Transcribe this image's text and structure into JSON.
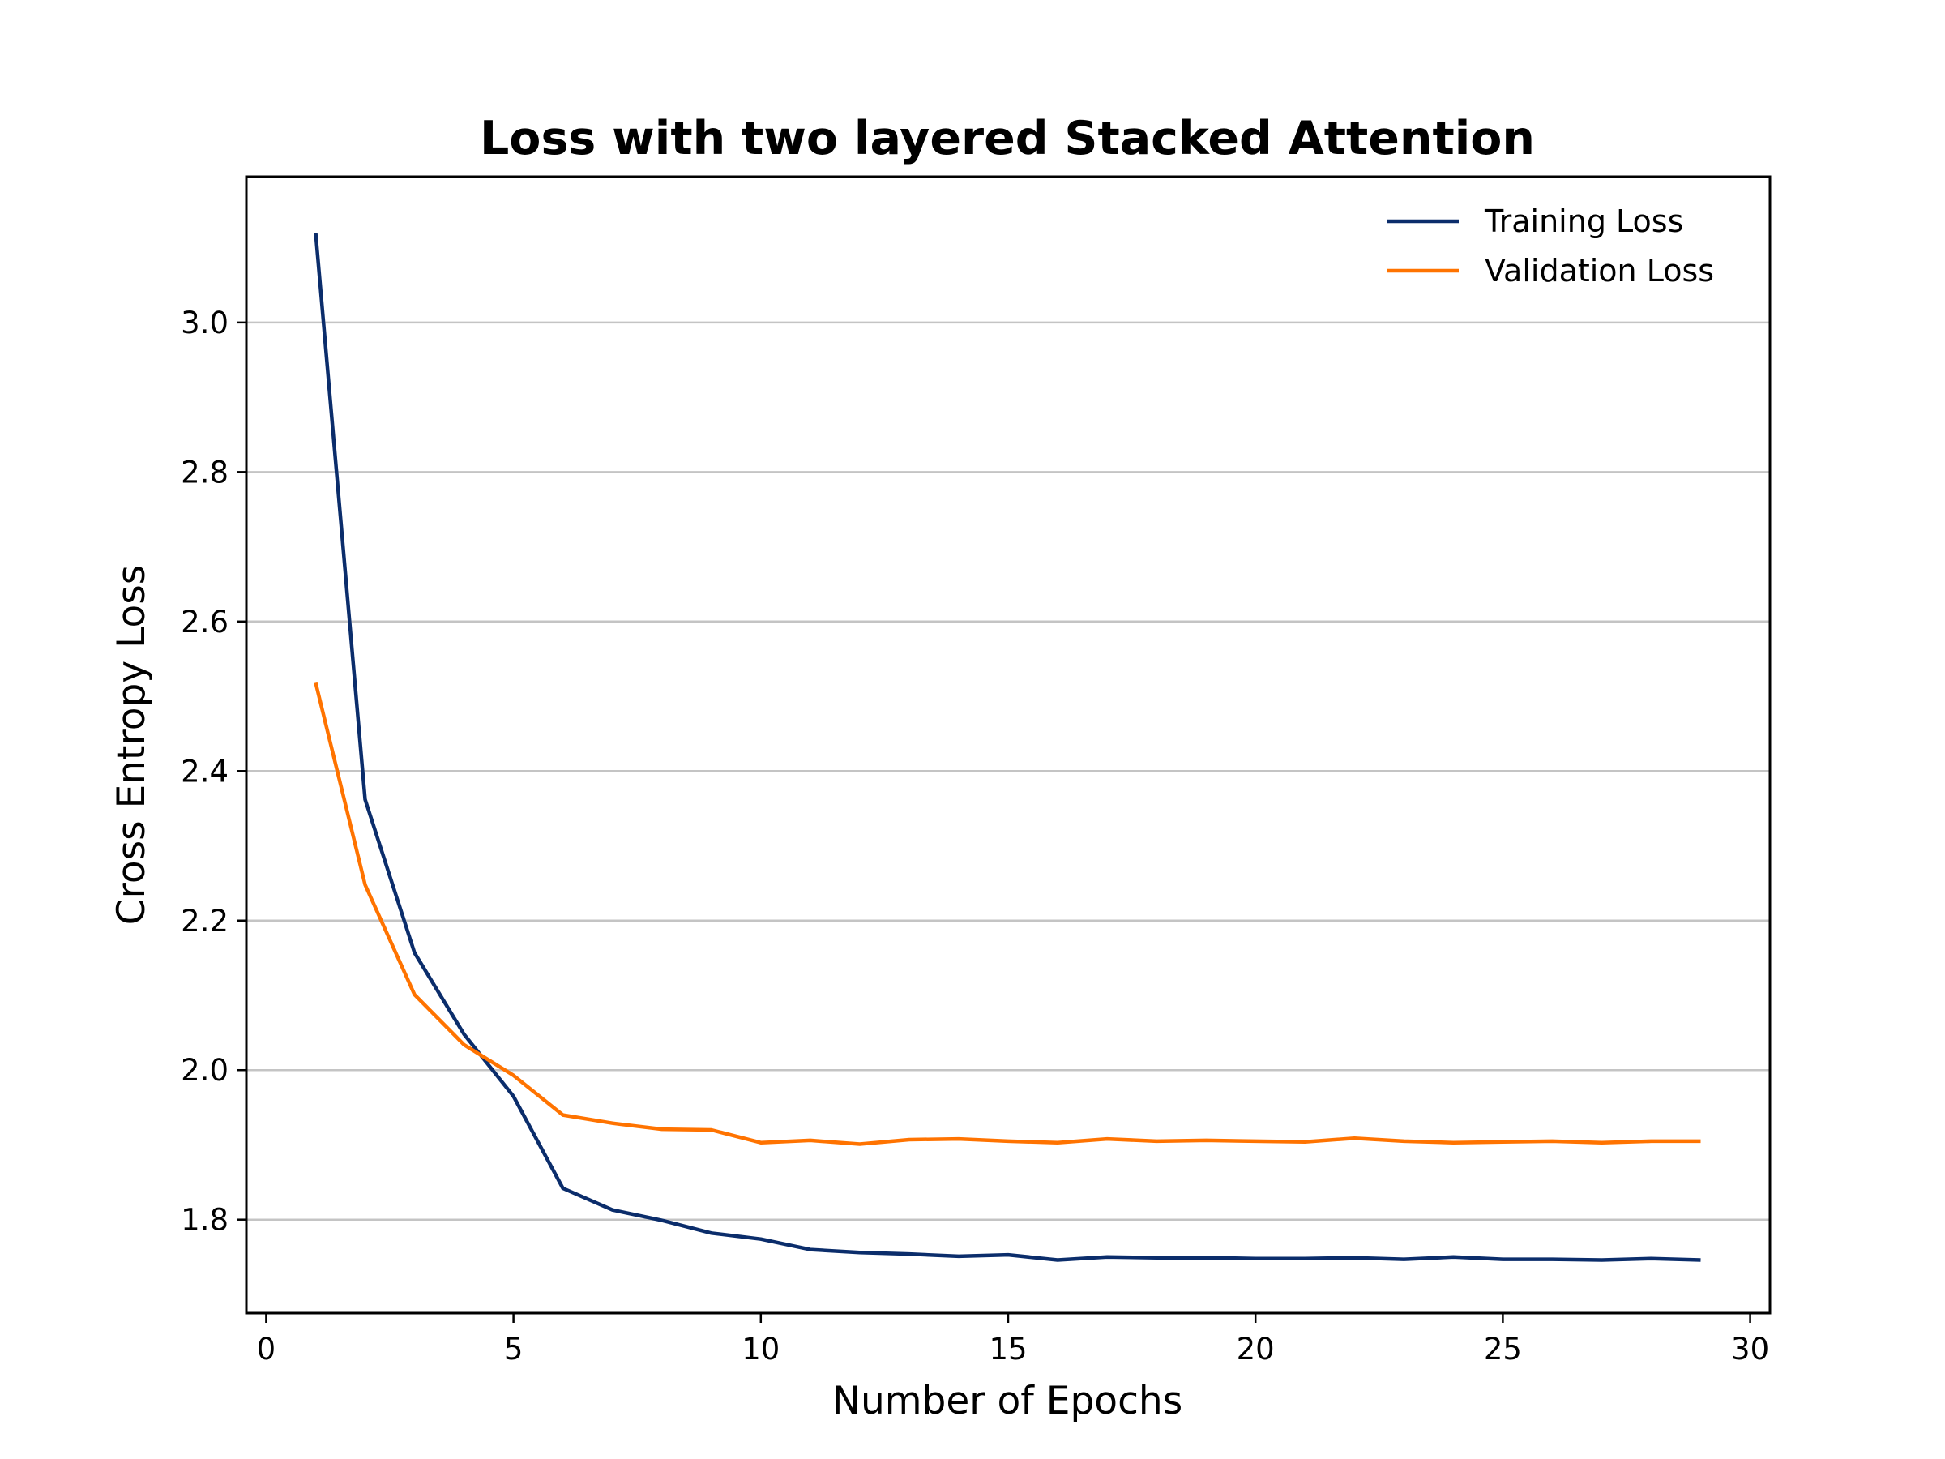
{
  "chart_data": {
    "type": "line",
    "title": "Loss with two layered Stacked Attention",
    "xlabel": "Number of Epochs",
    "ylabel": "Cross Entropy Loss",
    "xlim": [
      -0.4,
      30.4
    ],
    "ylim": [
      1.675,
      3.195
    ],
    "xticks": [
      0,
      5,
      10,
      15,
      20,
      25,
      30
    ],
    "yticks": [
      1.8,
      2.0,
      2.2,
      2.4,
      2.6,
      2.8,
      3.0
    ],
    "ytick_labels": [
      "1.8",
      "2.0",
      "2.2",
      "2.4",
      "2.6",
      "2.8",
      "3.0"
    ],
    "grid": "horizontal",
    "legend_position": "top-right",
    "x": [
      1,
      2,
      3,
      4,
      5,
      6,
      7,
      8,
      9,
      10,
      11,
      12,
      13,
      14,
      15,
      16,
      17,
      18,
      19,
      20,
      21,
      22,
      23,
      24,
      25,
      26,
      27,
      28,
      29
    ],
    "series": [
      {
        "name": "Training Loss",
        "color": "#0b2d6b",
        "values": [
          3.12,
          2.362,
          2.157,
          2.048,
          1.965,
          1.842,
          1.813,
          1.799,
          1.782,
          1.774,
          1.76,
          1.756,
          1.754,
          1.751,
          1.753,
          1.746,
          1.75,
          1.749,
          1.749,
          1.748,
          1.748,
          1.749,
          1.747,
          1.75,
          1.747,
          1.747,
          1.746,
          1.748,
          1.746
        ]
      },
      {
        "name": "Validation Loss",
        "color": "#ff7300",
        "values": [
          2.518,
          2.248,
          2.101,
          2.034,
          1.993,
          1.94,
          1.929,
          1.921,
          1.92,
          1.903,
          1.906,
          1.901,
          1.907,
          1.908,
          1.905,
          1.903,
          1.908,
          1.905,
          1.906,
          1.905,
          1.904,
          1.909,
          1.905,
          1.903,
          1.904,
          1.905,
          1.903,
          1.905,
          1.905
        ]
      }
    ]
  }
}
